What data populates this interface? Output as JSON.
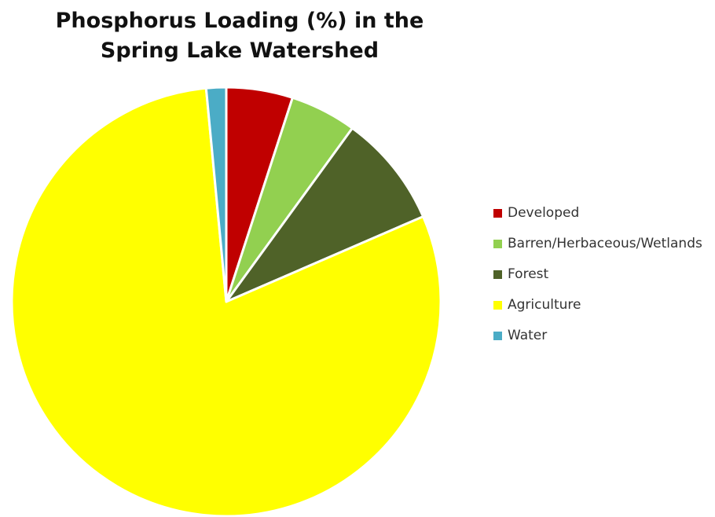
{
  "chart_data": {
    "type": "pie",
    "title": [
      "Phosphorus Loading (%) in the",
      "Spring Lake Watershed"
    ],
    "legend_position": "right",
    "slices": [
      {
        "label": "Developed",
        "value": 5,
        "color": "#c00000"
      },
      {
        "label": "Barren/Herbaceous/Wetlands",
        "value": 5,
        "color": "#92d050"
      },
      {
        "label": "Forest",
        "value": 8.5,
        "color": "#4f6228"
      },
      {
        "label": "Agriculture",
        "value": 80,
        "color": "#ffff00"
      },
      {
        "label": "Water",
        "value": 1.5,
        "color": "#4bacc6"
      }
    ]
  }
}
